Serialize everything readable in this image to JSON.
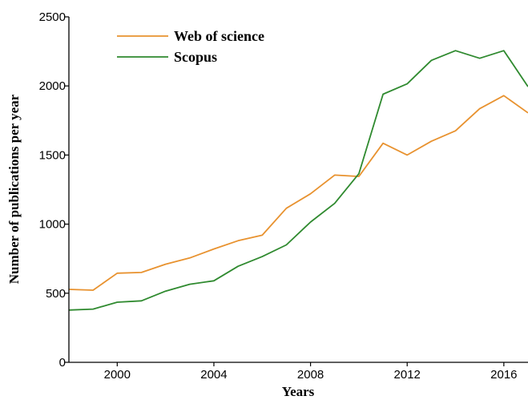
{
  "chart_data": {
    "type": "line",
    "title": "",
    "xlabel": "Years",
    "ylabel": "Number of publications per year",
    "x": [
      1998,
      1999,
      2000,
      2001,
      2002,
      2003,
      2004,
      2005,
      2006,
      2007,
      2008,
      2009,
      2010,
      2011,
      2012,
      2013,
      2014,
      2015,
      2016,
      2017
    ],
    "xlim": [
      1998,
      2017
    ],
    "ylim": [
      0,
      2500
    ],
    "xticks": [
      "2000",
      "2004",
      "2008",
      "2012",
      "2016"
    ],
    "yticks": [
      "0",
      "500",
      "1000",
      "1500",
      "2000",
      "2500"
    ],
    "grid": false,
    "legend_position": "top-left",
    "series": [
      {
        "name": "Web of science",
        "color": "#e8922f",
        "values": [
          528,
          522,
          645,
          650,
          710,
          755,
          820,
          880,
          920,
          1115,
          1220,
          1355,
          1345,
          1585,
          1500,
          1600,
          1675,
          1835,
          1930,
          1805
        ]
      },
      {
        "name": "Scopus",
        "color": "#2f8a2f",
        "values": [
          378,
          385,
          435,
          445,
          515,
          565,
          590,
          695,
          765,
          850,
          1015,
          1150,
          1365,
          1940,
          2015,
          2185,
          2255,
          2200,
          2255,
          1995
        ]
      }
    ]
  }
}
